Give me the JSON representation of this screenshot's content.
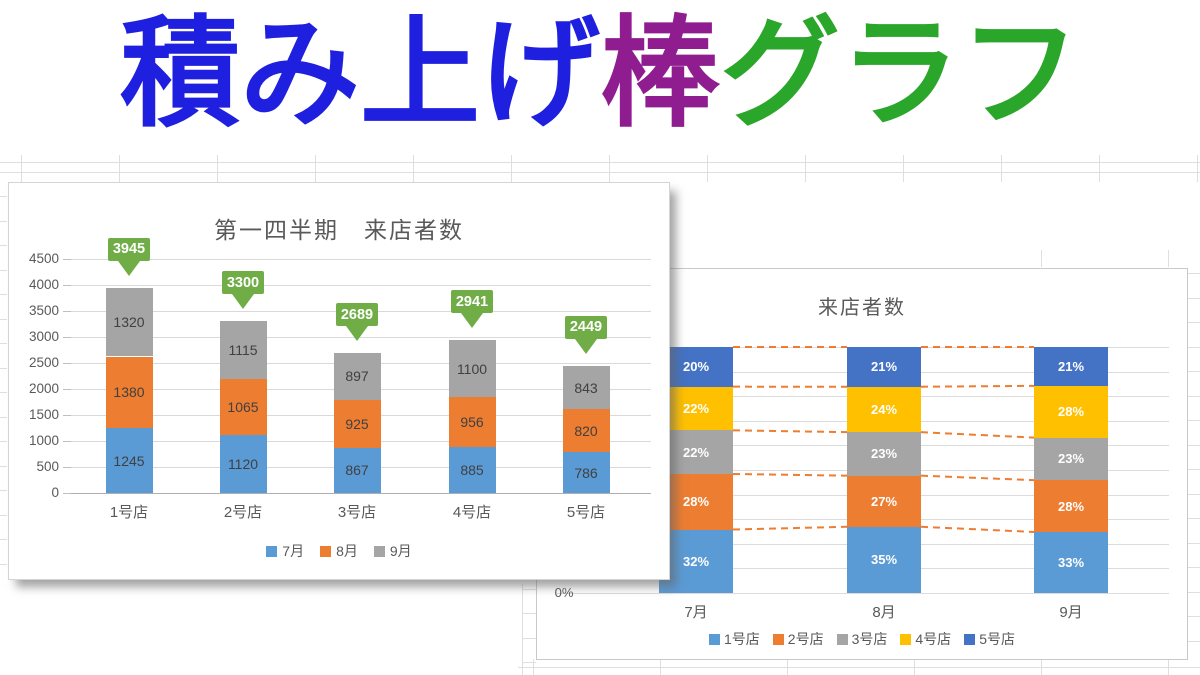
{
  "headline": {
    "part1": "積み上げ",
    "part2": "棒",
    "part3": "グラフ",
    "color1": "#1F1FE0",
    "color2": "#8F1D8F",
    "color3": "#2AA62A"
  },
  "chart_data": [
    {
      "type": "bar",
      "variant": "stacked-column",
      "title": "第一四半期　来店者数",
      "categories": [
        "1号店",
        "2号店",
        "3号店",
        "4号店",
        "5号店"
      ],
      "series": [
        {
          "name": "7月",
          "color": "#5B9BD5",
          "values": [
            1245,
            1120,
            867,
            885,
            786
          ]
        },
        {
          "name": "8月",
          "color": "#ED7D31",
          "values": [
            1380,
            1065,
            925,
            956,
            820
          ]
        },
        {
          "name": "9月",
          "color": "#A5A5A5",
          "values": [
            1320,
            1115,
            897,
            1100,
            843
          ]
        }
      ],
      "totals": [
        3945,
        3300,
        2689,
        2941,
        2449
      ],
      "callout_color": "#70AD47",
      "ylim": [
        0,
        4500
      ],
      "ytick_step": 500,
      "grid": true,
      "legend_position": "bottom",
      "text_color": "#595959",
      "label_color": "#404040"
    },
    {
      "type": "bar",
      "variant": "100%-stacked-column",
      "title": "来店者数",
      "categories": [
        "7月",
        "8月",
        "9月"
      ],
      "series": [
        {
          "name": "1号店",
          "color": "#5B9BD5",
          "values_pct": [
            32,
            35,
            33
          ]
        },
        {
          "name": "2号店",
          "color": "#ED7D31",
          "values_pct": [
            28,
            27,
            28
          ]
        },
        {
          "name": "3号店",
          "color": "#A5A5A5",
          "values_pct": [
            22,
            23,
            23
          ]
        },
        {
          "name": "4号店",
          "color": "#FFC000",
          "values_pct": [
            22,
            24,
            28
          ]
        },
        {
          "name": "5号店",
          "color": "#4472C4",
          "values_pct": [
            20,
            21,
            21
          ]
        }
      ],
      "y_axis_visible_label": "0%",
      "series_lines": {
        "style": "dashed",
        "color": "#ED7D31"
      },
      "grid": true,
      "legend_position": "bottom",
      "text_color": "#595959"
    }
  ]
}
